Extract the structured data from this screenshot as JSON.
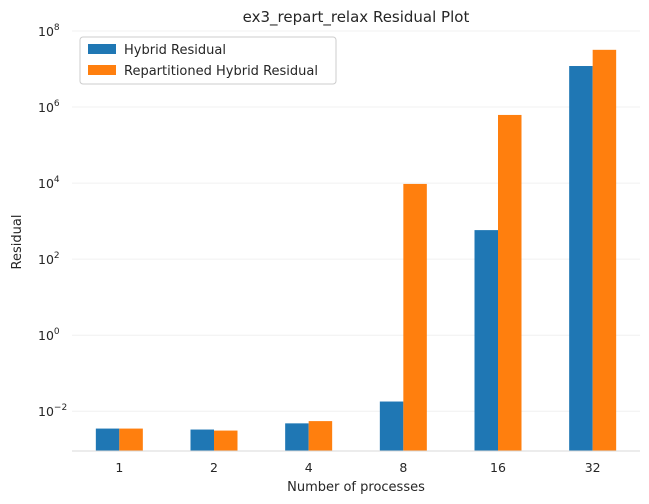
{
  "chart_data": {
    "type": "bar",
    "title": "ex3_repart_relax Residual Plot",
    "xlabel": "Number of processes",
    "ylabel": "Residual",
    "yscale": "log",
    "ylim": [
      0.0009,
      100000000
    ],
    "ytick_exponents": [
      "−2",
      "0",
      "2",
      "4",
      "6",
      "8"
    ],
    "ytick_base": "10",
    "ytick_values": [
      0.01,
      1,
      100,
      10000,
      1000000,
      100000000
    ],
    "categories": [
      "1",
      "2",
      "4",
      "8",
      "16",
      "32"
    ],
    "series": [
      {
        "name": "Hybrid Residual",
        "color": "#1f77b4",
        "values": [
          0.0035,
          0.0033,
          0.0048,
          0.018,
          580,
          12000000
        ]
      },
      {
        "name": "Repartitioned Hybrid Residual",
        "color": "#ff7f0e",
        "values": [
          0.0035,
          0.0031,
          0.0055,
          9500,
          620000,
          32000000
        ]
      }
    ],
    "grid": true,
    "legend": "top-left"
  }
}
